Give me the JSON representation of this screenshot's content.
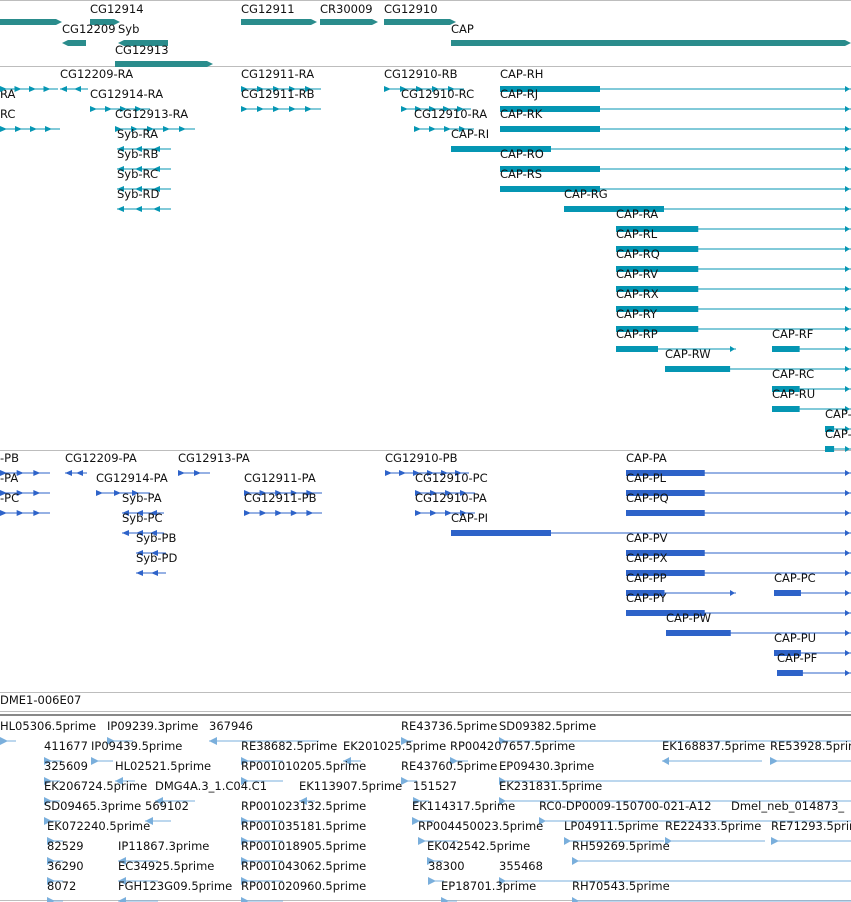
{
  "colors": {
    "gene": "#2a8c8c",
    "transcript": "#0596b3",
    "prediction": "#2e63c9",
    "est": "#7aafdc",
    "separator": "#bdbdbd",
    "text": "#111111"
  },
  "tracks": {
    "genes": {
      "features": [
        {
          "id": "g-left",
          "label": ""
        },
        {
          "id": "g-cg12914",
          "label": "CG12914"
        },
        {
          "id": "g-cg12209",
          "label": "CG12209"
        },
        {
          "id": "g-syb",
          "label": "Syb"
        },
        {
          "id": "g-cg12913",
          "label": "CG12913"
        },
        {
          "id": "g-cg12911",
          "label": "CG12911"
        },
        {
          "id": "g-cr30009",
          "label": "CR30009"
        },
        {
          "id": "g-cg12910",
          "label": "CG12910"
        },
        {
          "id": "g-cap",
          "label": "CAP"
        }
      ]
    },
    "transcripts": {
      "features": [
        {
          "id": "t-ra-l",
          "label": "RA"
        },
        {
          "id": "t-rc-l",
          "label": "RC"
        },
        {
          "id": "t-cg12209-ra",
          "label": "CG12209-RA"
        },
        {
          "id": "t-cg12914-ra",
          "label": "CG12914-RA"
        },
        {
          "id": "t-cg12913-ra",
          "label": "CG12913-RA"
        },
        {
          "id": "t-syb-ra",
          "label": "Syb-RA"
        },
        {
          "id": "t-syb-rb",
          "label": "Syb-RB"
        },
        {
          "id": "t-syb-rc",
          "label": "Syb-RC"
        },
        {
          "id": "t-syb-rd",
          "label": "Syb-RD"
        },
        {
          "id": "t-cg12911-ra",
          "label": "CG12911-RA"
        },
        {
          "id": "t-cg12911-rb",
          "label": "CG12911-RB"
        },
        {
          "id": "t-cg12910-rb",
          "label": "CG12910-RB"
        },
        {
          "id": "t-cg12910-rc",
          "label": "CG12910-RC"
        },
        {
          "id": "t-cg12910-ra",
          "label": "CG12910-RA"
        },
        {
          "id": "t-cap-ri",
          "label": "CAP-RI"
        },
        {
          "id": "t-cap-rh",
          "label": "CAP-RH"
        },
        {
          "id": "t-cap-rj",
          "label": "CAP-RJ"
        },
        {
          "id": "t-cap-rk",
          "label": "CAP-RK"
        },
        {
          "id": "t-cap-ro",
          "label": "CAP-RO"
        },
        {
          "id": "t-cap-rs",
          "label": "CAP-RS"
        },
        {
          "id": "t-cap-rg",
          "label": "CAP-RG"
        },
        {
          "id": "t-cap-ra",
          "label": "CAP-RA"
        },
        {
          "id": "t-cap-rl",
          "label": "CAP-RL"
        },
        {
          "id": "t-cap-rq",
          "label": "CAP-RQ"
        },
        {
          "id": "t-cap-rv",
          "label": "CAP-RV"
        },
        {
          "id": "t-cap-rx",
          "label": "CAP-RX"
        },
        {
          "id": "t-cap-ry",
          "label": "CAP-RY"
        },
        {
          "id": "t-cap-rp",
          "label": "CAP-RP"
        },
        {
          "id": "t-cap-rf",
          "label": "CAP-RF"
        },
        {
          "id": "t-cap-rw",
          "label": "CAP-RW"
        },
        {
          "id": "t-cap-rc",
          "label": "CAP-RC"
        },
        {
          "id": "t-cap-ru",
          "label": "CAP-RU"
        },
        {
          "id": "t-cap-x1",
          "label": "CAP-"
        },
        {
          "id": "t-cap-x2",
          "label": "CAP-"
        }
      ]
    },
    "proteins": {
      "features": [
        {
          "id": "p-pb-l",
          "label": "-PB"
        },
        {
          "id": "p-pa-l",
          "label": "-PA"
        },
        {
          "id": "p-pc-l",
          "label": "-PC"
        },
        {
          "id": "p-cg12209-pa",
          "label": "CG12209-PA"
        },
        {
          "id": "p-cg12913-pa",
          "label": "CG12913-PA"
        },
        {
          "id": "p-cg12914-pa",
          "label": "CG12914-PA"
        },
        {
          "id": "p-syb-pa",
          "label": "Syb-PA"
        },
        {
          "id": "p-syb-pc",
          "label": "Syb-PC"
        },
        {
          "id": "p-syb-pb",
          "label": "Syb-PB"
        },
        {
          "id": "p-syb-pd",
          "label": "Syb-PD"
        },
        {
          "id": "p-cg12911-pa",
          "label": "CG12911-PA"
        },
        {
          "id": "p-cg12911-pb",
          "label": "CG12911-PB"
        },
        {
          "id": "p-cg12910-pb",
          "label": "CG12910-PB"
        },
        {
          "id": "p-cg12910-pc",
          "label": "CG12910-PC"
        },
        {
          "id": "p-cg12910-pa",
          "label": "CG12910-PA"
        },
        {
          "id": "p-cap-pi",
          "label": "CAP-PI"
        },
        {
          "id": "p-cap-pa",
          "label": "CAP-PA"
        },
        {
          "id": "p-cap-pl",
          "label": "CAP-PL"
        },
        {
          "id": "p-cap-pq",
          "label": "CAP-PQ"
        },
        {
          "id": "p-cap-pv",
          "label": "CAP-PV"
        },
        {
          "id": "p-cap-px",
          "label": "CAP-PX"
        },
        {
          "id": "p-cap-pp",
          "label": "CAP-PP"
        },
        {
          "id": "p-cap-pc",
          "label": "CAP-PC"
        },
        {
          "id": "p-cap-py",
          "label": "CAP-PY"
        },
        {
          "id": "p-cap-pw",
          "label": "CAP-PW"
        },
        {
          "id": "p-cap-pu",
          "label": "CAP-PU"
        },
        {
          "id": "p-cap-pf",
          "label": "CAP-PF"
        }
      ]
    },
    "clone": {
      "features": [
        {
          "id": "c-dme1",
          "label": "DME1-006E07"
        }
      ]
    },
    "ests": {
      "features": [
        {
          "id": "e1",
          "label": "HL05306.5prime"
        },
        {
          "id": "e2",
          "label": "IP09239.3prime"
        },
        {
          "id": "e3",
          "label": "367946"
        },
        {
          "id": "e4",
          "label": "RE43736.5prime"
        },
        {
          "id": "e5",
          "label": "SD09382.5prime"
        },
        {
          "id": "e6",
          "label": "411677"
        },
        {
          "id": "e7",
          "label": "IP09439.5prime"
        },
        {
          "id": "e8",
          "label": "RE38682.5prime"
        },
        {
          "id": "e9",
          "label": "EK201025.5prime"
        },
        {
          "id": "e10",
          "label": "RP004207657.5prime"
        },
        {
          "id": "e11",
          "label": "EK168837.5prime"
        },
        {
          "id": "e12",
          "label": "RE53928.5prime"
        },
        {
          "id": "e13",
          "label": "325609"
        },
        {
          "id": "e14",
          "label": "HL02521.5prime"
        },
        {
          "id": "e15",
          "label": "RP001010205.5prime"
        },
        {
          "id": "e16",
          "label": "RE43760.5prime"
        },
        {
          "id": "e17",
          "label": "EP09430.3prime"
        },
        {
          "id": "e18",
          "label": "EK206724.5prime"
        },
        {
          "id": "e19",
          "label": "DMG4A.3_1.C04.C1"
        },
        {
          "id": "e20",
          "label": "EK113907.5prime"
        },
        {
          "id": "e21",
          "label": "151527"
        },
        {
          "id": "e22",
          "label": "EK231831.5prime"
        },
        {
          "id": "e23",
          "label": "SD09465.3prime"
        },
        {
          "id": "e24",
          "label": "569102"
        },
        {
          "id": "e25",
          "label": "RP001023132.5prime"
        },
        {
          "id": "e26",
          "label": "EK114317.5prime"
        },
        {
          "id": "e27",
          "label": "RC0-DP0009-150700-021-A12"
        },
        {
          "id": "e28",
          "label": "Dmel_neb_014873_"
        },
        {
          "id": "e29",
          "label": "EK072240.5prime"
        },
        {
          "id": "e30",
          "label": "RP001035181.5prime"
        },
        {
          "id": "e31",
          "label": "RP004450023.5prime"
        },
        {
          "id": "e32",
          "label": "LP04911.5prime"
        },
        {
          "id": "e33",
          "label": "RE22433.5prime"
        },
        {
          "id": "e34",
          "label": "RE71293.5prime"
        },
        {
          "id": "e35",
          "label": "82529"
        },
        {
          "id": "e36",
          "label": "IP11867.3prime"
        },
        {
          "id": "e37",
          "label": "RP001018905.5prime"
        },
        {
          "id": "e38",
          "label": "EK042542.5prime"
        },
        {
          "id": "e39",
          "label": "RH59269.5prime"
        },
        {
          "id": "e40",
          "label": "36290"
        },
        {
          "id": "e41",
          "label": "EC34925.5prime"
        },
        {
          "id": "e42",
          "label": "RP001043062.5prime"
        },
        {
          "id": "e43",
          "label": "38300"
        },
        {
          "id": "e44",
          "label": "355468"
        },
        {
          "id": "e45",
          "label": "8072"
        },
        {
          "id": "e46",
          "label": "FGH123G09.5prime"
        },
        {
          "id": "e47",
          "label": "RP001020960.5prime"
        },
        {
          "id": "e48",
          "label": "EP18701.3prime"
        },
        {
          "id": "e49",
          "label": "RH70543.5prime"
        }
      ]
    }
  }
}
